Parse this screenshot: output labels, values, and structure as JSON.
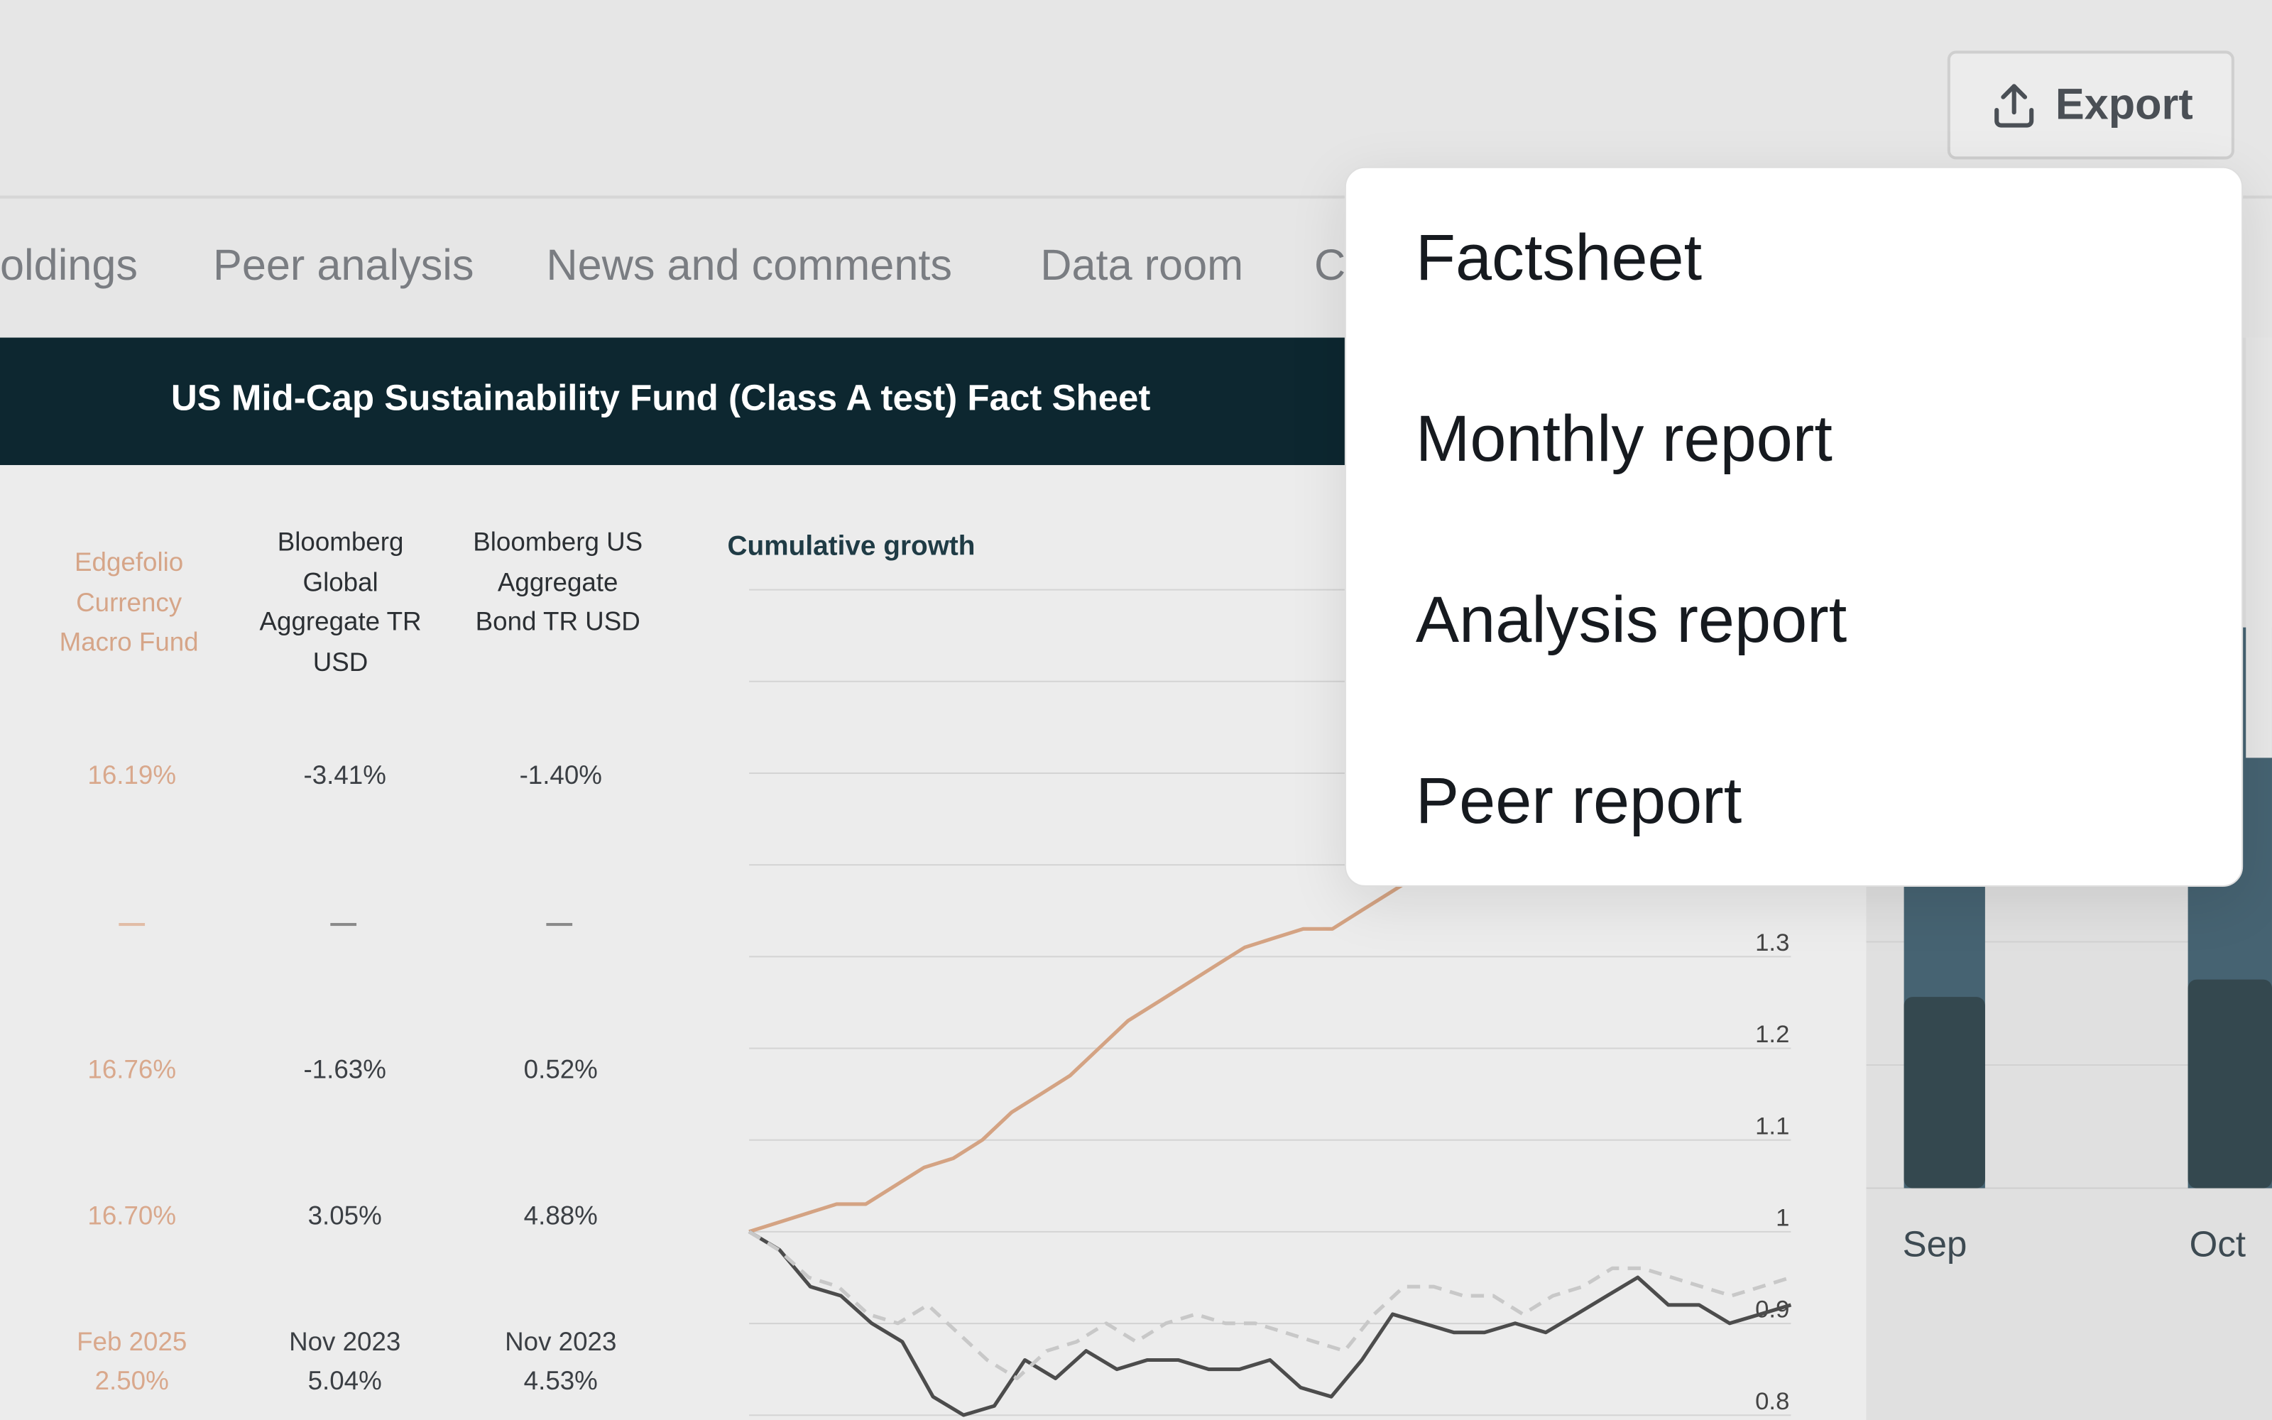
{
  "toolbar": {
    "export_label": "Export",
    "export_icon": "upload-icon"
  },
  "tabs": [
    "oldings",
    "Peer analysis",
    "News and comments",
    "Data room",
    "C"
  ],
  "banner": {
    "title": "US Mid-Cap Sustainability Fund (Class A test) Fact Sheet"
  },
  "table": {
    "columns": [
      "Edgefolio Currency Macro Fund",
      "Bloomberg Global Aggregate TR USD",
      "Bloomberg US Aggregate Bond TR USD"
    ],
    "rows": [
      [
        "16.19%",
        "-3.41%",
        "-1.40%"
      ],
      [
        "—",
        "—",
        "—"
      ],
      [
        "16.76%",
        "-1.63%",
        "0.52%"
      ],
      [
        "16.70%",
        "3.05%",
        "4.88%"
      ],
      [
        "Feb 2025 2.50%",
        "Nov 2023 5.04%",
        "Nov 2023 4.53%"
      ]
    ]
  },
  "chart_data": {
    "type": "line",
    "title": "Cumulative growth",
    "ylim": [
      0.8,
      1.45
    ],
    "yticks": [
      "1.3",
      "1.2",
      "1.1",
      "1",
      "0.9",
      "0.8"
    ],
    "series": [
      {
        "color": "#d4a383",
        "values": [
          1.0,
          1.01,
          1.02,
          1.03,
          1.03,
          1.05,
          1.07,
          1.08,
          1.1,
          1.13,
          1.15,
          1.17,
          1.2,
          1.23,
          1.25,
          1.27,
          1.29,
          1.31,
          1.32,
          1.33,
          1.33,
          1.35,
          1.37,
          1.39,
          1.41
        ]
      },
      {
        "color": "#4c4c4c",
        "values": [
          1.0,
          0.98,
          0.94,
          0.93,
          0.9,
          0.88,
          0.82,
          0.8,
          0.81,
          0.86,
          0.84,
          0.87,
          0.85,
          0.86,
          0.86,
          0.85,
          0.85,
          0.86,
          0.83,
          0.82,
          0.86,
          0.91,
          0.9,
          0.89,
          0.89,
          0.9,
          0.89,
          0.91,
          0.93,
          0.95,
          0.92,
          0.92,
          0.9,
          0.91,
          0.92
        ]
      },
      {
        "color": "#c8c8c8",
        "dashed": true,
        "values": [
          1.0,
          0.98,
          0.95,
          0.94,
          0.91,
          0.9,
          0.92,
          0.89,
          0.86,
          0.84,
          0.87,
          0.88,
          0.9,
          0.88,
          0.9,
          0.91,
          0.9,
          0.9,
          0.89,
          0.88,
          0.87,
          0.91,
          0.94,
          0.94,
          0.93,
          0.93,
          0.91,
          0.93,
          0.94,
          0.96,
          0.96,
          0.95,
          0.94,
          0.93,
          0.94,
          0.95
        ]
      }
    ]
  },
  "right_panel": {
    "x_labels": [
      "Sep",
      "Oct"
    ]
  },
  "dropdown": {
    "items": [
      "Factsheet",
      "Monthly report",
      "Analysis report",
      "Peer report"
    ]
  }
}
